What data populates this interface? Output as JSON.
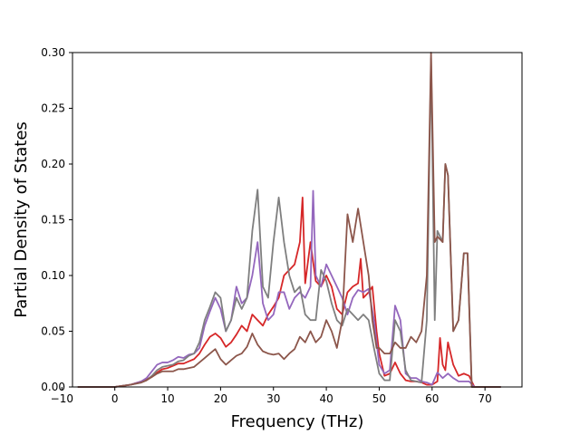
{
  "chart_data": {
    "type": "line",
    "title": "",
    "xlabel": "Frequency (THz)",
    "ylabel": "Partial Density of States",
    "xlim": [
      -8.0,
      77.0
    ],
    "ylim": [
      0.0,
      0.3
    ],
    "xticks": [
      -10,
      0,
      10,
      20,
      30,
      40,
      50,
      60,
      70
    ],
    "xtick_labels": [
      "−10",
      "0",
      "10",
      "20",
      "30",
      "40",
      "50",
      "60",
      "70"
    ],
    "yticks": [
      0.0,
      0.05,
      0.1,
      0.15,
      0.2,
      0.25,
      0.3
    ],
    "ytick_labels": [
      "0.00",
      "0.05",
      "0.10",
      "0.15",
      "0.20",
      "0.25",
      "0.30"
    ],
    "grid": false,
    "legend": "none",
    "series": [
      {
        "color": "#d62728",
        "points": [
          [
            -7,
            0
          ],
          [
            0,
            0
          ],
          [
            3,
            0.002
          ],
          [
            5,
            0.005
          ],
          [
            7,
            0.009
          ],
          [
            8,
            0.013
          ],
          [
            9,
            0.016
          ],
          [
            10,
            0.017
          ],
          [
            11,
            0.019
          ],
          [
            12,
            0.021
          ],
          [
            13,
            0.021
          ],
          [
            14,
            0.023
          ],
          [
            15,
            0.025
          ],
          [
            16,
            0.03
          ],
          [
            17,
            0.038
          ],
          [
            18,
            0.045
          ],
          [
            19,
            0.048
          ],
          [
            20,
            0.044
          ],
          [
            21,
            0.036
          ],
          [
            22,
            0.04
          ],
          [
            23,
            0.047
          ],
          [
            24,
            0.055
          ],
          [
            25,
            0.05
          ],
          [
            26,
            0.065
          ],
          [
            27,
            0.06
          ],
          [
            28,
            0.055
          ],
          [
            29,
            0.065
          ],
          [
            30,
            0.072
          ],
          [
            31,
            0.08
          ],
          [
            32,
            0.1
          ],
          [
            33,
            0.105
          ],
          [
            34,
            0.11
          ],
          [
            35,
            0.13
          ],
          [
            35.5,
            0.17
          ],
          [
            36,
            0.093
          ],
          [
            37,
            0.13
          ],
          [
            38,
            0.095
          ],
          [
            39,
            0.09
          ],
          [
            40,
            0.1
          ],
          [
            41,
            0.09
          ],
          [
            42,
            0.07
          ],
          [
            43,
            0.065
          ],
          [
            44,
            0.085
          ],
          [
            45,
            0.09
          ],
          [
            46,
            0.093
          ],
          [
            46.5,
            0.115
          ],
          [
            47,
            0.08
          ],
          [
            48,
            0.085
          ],
          [
            48.7,
            0.09
          ],
          [
            49.5,
            0.05
          ],
          [
            50,
            0.03
          ],
          [
            51,
            0.01
          ],
          [
            52,
            0.012
          ],
          [
            53,
            0.022
          ],
          [
            54,
            0.012
          ],
          [
            55,
            0.006
          ],
          [
            56,
            0.005
          ],
          [
            57,
            0.005
          ],
          [
            58,
            0.004
          ],
          [
            59,
            0.002
          ],
          [
            60,
            0.002
          ],
          [
            61,
            0.005
          ],
          [
            61.5,
            0.044
          ],
          [
            62,
            0.02
          ],
          [
            62.5,
            0.015
          ],
          [
            63,
            0.04
          ],
          [
            64,
            0.02
          ],
          [
            65,
            0.01
          ],
          [
            66,
            0.012
          ],
          [
            67,
            0.01
          ],
          [
            68,
            0
          ],
          [
            73,
            0
          ]
        ]
      },
      {
        "color": "#9467bd",
        "points": [
          [
            -7,
            0
          ],
          [
            0,
            0
          ],
          [
            3,
            0.002
          ],
          [
            5,
            0.005
          ],
          [
            6,
            0.008
          ],
          [
            7,
            0.014
          ],
          [
            8,
            0.02
          ],
          [
            9,
            0.022
          ],
          [
            10,
            0.022
          ],
          [
            11,
            0.024
          ],
          [
            12,
            0.027
          ],
          [
            13,
            0.026
          ],
          [
            14,
            0.029
          ],
          [
            15,
            0.03
          ],
          [
            16,
            0.035
          ],
          [
            17,
            0.055
          ],
          [
            18,
            0.068
          ],
          [
            19,
            0.08
          ],
          [
            20,
            0.07
          ],
          [
            21,
            0.05
          ],
          [
            22,
            0.06
          ],
          [
            23,
            0.09
          ],
          [
            24,
            0.075
          ],
          [
            25,
            0.08
          ],
          [
            26,
            0.1
          ],
          [
            27,
            0.13
          ],
          [
            28,
            0.075
          ],
          [
            29,
            0.06
          ],
          [
            30,
            0.065
          ],
          [
            31,
            0.085
          ],
          [
            32,
            0.085
          ],
          [
            33,
            0.07
          ],
          [
            34,
            0.08
          ],
          [
            35,
            0.085
          ],
          [
            36,
            0.08
          ],
          [
            37,
            0.09
          ],
          [
            37.5,
            0.176
          ],
          [
            38,
            0.1
          ],
          [
            39,
            0.09
          ],
          [
            40,
            0.11
          ],
          [
            41,
            0.1
          ],
          [
            42,
            0.09
          ],
          [
            43,
            0.08
          ],
          [
            44,
            0.065
          ],
          [
            45,
            0.08
          ],
          [
            46,
            0.087
          ],
          [
            47,
            0.085
          ],
          [
            48,
            0.088
          ],
          [
            49,
            0.06
          ],
          [
            50,
            0.02
          ],
          [
            51,
            0.012
          ],
          [
            52,
            0.015
          ],
          [
            53,
            0.073
          ],
          [
            54,
            0.06
          ],
          [
            55,
            0.012
          ],
          [
            56,
            0.008
          ],
          [
            57,
            0.008
          ],
          [
            58,
            0.005
          ],
          [
            59,
            0.004
          ],
          [
            60,
            0.002
          ],
          [
            61,
            0.013
          ],
          [
            62,
            0.008
          ],
          [
            63,
            0.012
          ],
          [
            64,
            0.008
          ],
          [
            65,
            0.005
          ],
          [
            66,
            0.005
          ],
          [
            67,
            0.005
          ],
          [
            68,
            0
          ],
          [
            73,
            0
          ]
        ]
      },
      {
        "color": "#7f7f7f",
        "points": [
          [
            -7,
            0
          ],
          [
            0,
            0
          ],
          [
            3,
            0.002
          ],
          [
            5,
            0.004
          ],
          [
            6,
            0.006
          ],
          [
            7,
            0.01
          ],
          [
            8,
            0.015
          ],
          [
            9,
            0.018
          ],
          [
            10,
            0.019
          ],
          [
            11,
            0.02
          ],
          [
            12,
            0.023
          ],
          [
            13,
            0.024
          ],
          [
            14,
            0.028
          ],
          [
            15,
            0.03
          ],
          [
            16,
            0.04
          ],
          [
            17,
            0.06
          ],
          [
            18,
            0.072
          ],
          [
            19,
            0.085
          ],
          [
            20,
            0.08
          ],
          [
            21,
            0.05
          ],
          [
            22,
            0.06
          ],
          [
            23,
            0.08
          ],
          [
            24,
            0.07
          ],
          [
            25,
            0.08
          ],
          [
            26,
            0.14
          ],
          [
            27,
            0.177
          ],
          [
            28,
            0.09
          ],
          [
            29,
            0.08
          ],
          [
            30,
            0.13
          ],
          [
            31,
            0.17
          ],
          [
            32,
            0.13
          ],
          [
            33,
            0.1
          ],
          [
            34,
            0.085
          ],
          [
            35,
            0.09
          ],
          [
            36,
            0.065
          ],
          [
            37,
            0.06
          ],
          [
            38,
            0.06
          ],
          [
            39,
            0.105
          ],
          [
            40,
            0.095
          ],
          [
            41,
            0.075
          ],
          [
            42,
            0.06
          ],
          [
            43,
            0.055
          ],
          [
            44,
            0.07
          ],
          [
            45,
            0.065
          ],
          [
            46,
            0.06
          ],
          [
            47,
            0.065
          ],
          [
            48,
            0.06
          ],
          [
            49,
            0.035
          ],
          [
            50,
            0.012
          ],
          [
            51,
            0.006
          ],
          [
            52,
            0.006
          ],
          [
            53,
            0.06
          ],
          [
            54,
            0.05
          ],
          [
            55,
            0.015
          ],
          [
            56,
            0.006
          ],
          [
            57,
            0.005
          ],
          [
            58,
            0.004
          ],
          [
            59,
            0.06
          ],
          [
            59.8,
            0.295
          ],
          [
            60.5,
            0.06
          ],
          [
            61,
            0.14
          ],
          [
            62,
            0.13
          ],
          [
            62.5,
            0.2
          ],
          [
            63,
            0.19
          ],
          [
            64,
            0.05
          ],
          [
            65,
            0.06
          ],
          [
            66,
            0.12
          ],
          [
            66.7,
            0.12
          ],
          [
            67.5,
            0
          ],
          [
            73,
            0
          ]
        ]
      },
      {
        "color": "#8c564b",
        "points": [
          [
            -7,
            0
          ],
          [
            0,
            0
          ],
          [
            3,
            0.002
          ],
          [
            5,
            0.004
          ],
          [
            6,
            0.006
          ],
          [
            7,
            0.009
          ],
          [
            8,
            0.012
          ],
          [
            9,
            0.014
          ],
          [
            10,
            0.014
          ],
          [
            11,
            0.014
          ],
          [
            12,
            0.016
          ],
          [
            13,
            0.016
          ],
          [
            14,
            0.017
          ],
          [
            15,
            0.018
          ],
          [
            16,
            0.022
          ],
          [
            17,
            0.026
          ],
          [
            18,
            0.03
          ],
          [
            19,
            0.034
          ],
          [
            20,
            0.025
          ],
          [
            21,
            0.02
          ],
          [
            22,
            0.024
          ],
          [
            23,
            0.028
          ],
          [
            24,
            0.03
          ],
          [
            25,
            0.036
          ],
          [
            26,
            0.048
          ],
          [
            27,
            0.038
          ],
          [
            28,
            0.032
          ],
          [
            29,
            0.03
          ],
          [
            30,
            0.029
          ],
          [
            31,
            0.03
          ],
          [
            32,
            0.025
          ],
          [
            33,
            0.03
          ],
          [
            34,
            0.034
          ],
          [
            35,
            0.045
          ],
          [
            36,
            0.04
          ],
          [
            37,
            0.05
          ],
          [
            38,
            0.04
          ],
          [
            39,
            0.045
          ],
          [
            40,
            0.06
          ],
          [
            41,
            0.05
          ],
          [
            42,
            0.035
          ],
          [
            43,
            0.06
          ],
          [
            44,
            0.155
          ],
          [
            45,
            0.13
          ],
          [
            46,
            0.16
          ],
          [
            47,
            0.13
          ],
          [
            48,
            0.1
          ],
          [
            48.7,
            0.06
          ],
          [
            49.5,
            0.035
          ],
          [
            50,
            0.035
          ],
          [
            51,
            0.03
          ],
          [
            52,
            0.03
          ],
          [
            53,
            0.04
          ],
          [
            54,
            0.035
          ],
          [
            55,
            0.035
          ],
          [
            56,
            0.045
          ],
          [
            57,
            0.04
          ],
          [
            58,
            0.05
          ],
          [
            59,
            0.1
          ],
          [
            59.8,
            0.3
          ],
          [
            60.5,
            0.13
          ],
          [
            61,
            0.135
          ],
          [
            62,
            0.13
          ],
          [
            62.5,
            0.2
          ],
          [
            63,
            0.19
          ],
          [
            64,
            0.05
          ],
          [
            65,
            0.06
          ],
          [
            66,
            0.12
          ],
          [
            66.7,
            0.12
          ],
          [
            67.5,
            0
          ],
          [
            73,
            0
          ]
        ]
      }
    ]
  }
}
